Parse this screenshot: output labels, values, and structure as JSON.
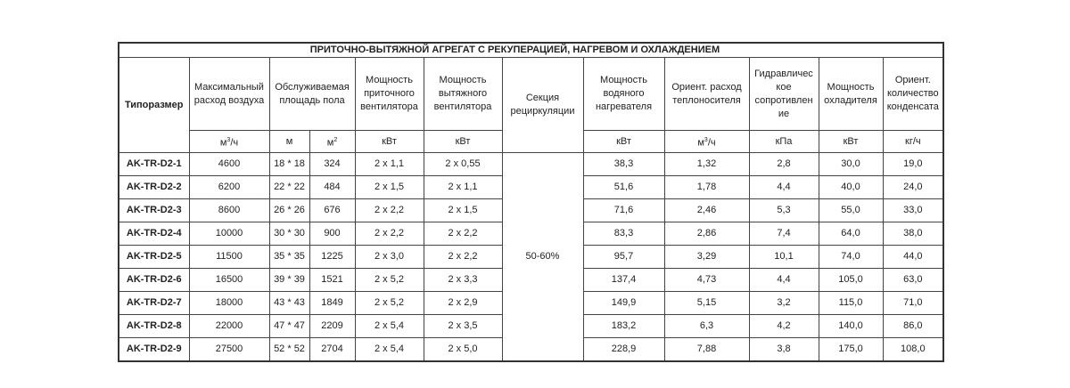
{
  "title": "ПРИТОЧНО-ВЫТЯЖНОЙ АГРЕГАТ С РЕКУПЕРАЦИЕЙ, НАГРЕВОМ И ОХЛАЖДЕНИЕМ",
  "headers": {
    "model": "Типоразмер",
    "airflow": "Максимальный расход воздуха",
    "area": "Обслуживаемая площадь пола",
    "supply_fan": "Мощность приточного вентилятора",
    "exhaust_fan": "Мощность вытяжного вентилятора",
    "recirc": "Секция рециркуляции",
    "heater": "Мощность водяного нагревателя",
    "coolant_flow": "Ориент. расход теплоносителя",
    "hydraulic": "Гидравличес кое сопротивлен ие",
    "cooler": "Мощность охладителя",
    "condensate": "Ориент. количество конденсата"
  },
  "units": {
    "airflow_base": "м",
    "airflow_sup": "3",
    "airflow_tail": "/ч",
    "area_side": "м",
    "area_sq_base": "м",
    "area_sq_sup": "2",
    "supply_fan": "кВт",
    "exhaust_fan": "кВт",
    "heater": "кВт",
    "coolant_base": "м",
    "coolant_sup": "3",
    "coolant_tail": "/ч",
    "hydraulic": "кПа",
    "cooler": "кВт",
    "condensate": "кг/ч"
  },
  "recirc_value": "50-60%",
  "rows": [
    [
      "AK-TR-D2-1",
      "4600",
      "18 * 18",
      "324",
      "2 x 1,1",
      "2 x 0,55",
      "38,3",
      "1,32",
      "2,8",
      "30,0",
      "19,0"
    ],
    [
      "AK-TR-D2-2",
      "6200",
      "22 * 22",
      "484",
      "2 x 1,5",
      "2 x 1,1",
      "51,6",
      "1,78",
      "4,4",
      "40,0",
      "24,0"
    ],
    [
      "AK-TR-D2-3",
      "8600",
      "26 * 26",
      "676",
      "2 x 2,2",
      "2 x 1,5",
      "71,6",
      "2,46",
      "5,3",
      "55,0",
      "33,0"
    ],
    [
      "AK-TR-D2-4",
      "10000",
      "30 * 30",
      "900",
      "2 x 2,2",
      "2 x 2,2",
      "83,3",
      "2,86",
      "7,4",
      "64,0",
      "38,0"
    ],
    [
      "AK-TR-D2-5",
      "11500",
      "35 * 35",
      "1225",
      "2 x 3,0",
      "2 x 2,2",
      "95,7",
      "3,29",
      "10,1",
      "74,0",
      "44,0"
    ],
    [
      "AK-TR-D2-6",
      "16500",
      "39 * 39",
      "1521",
      "2 x 5,2",
      "2 x 3,3",
      "137,4",
      "4,73",
      "4,4",
      "105,0",
      "63,0"
    ],
    [
      "AK-TR-D2-7",
      "18000",
      "43 * 43",
      "1849",
      "2 x 5,2",
      "2 x 2,9",
      "149,9",
      "5,15",
      "3,2",
      "115,0",
      "71,0"
    ],
    [
      "AK-TR-D2-8",
      "22000",
      "47 * 47",
      "2209",
      "2 x 5,4",
      "2 x 3,5",
      "183,2",
      "6,3",
      "4,2",
      "140,0",
      "86,0"
    ],
    [
      "AK-TR-D2-9",
      "27500",
      "52 * 52",
      "2704",
      "2 x 5,4",
      "2 x 5,0",
      "228,9",
      "7,88",
      "3,8",
      "175,0",
      "108,0"
    ]
  ]
}
